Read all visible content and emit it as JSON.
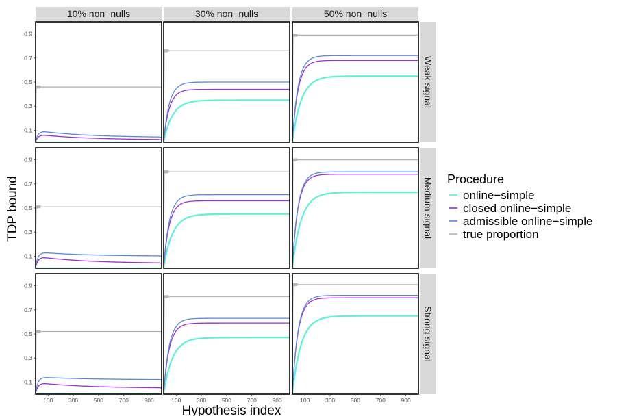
{
  "chart_data": {
    "type": "line",
    "xlabel": "Hypothesis index",
    "ylabel": "TDP bound",
    "xlim": [
      1,
      1000
    ],
    "ylim": [
      0,
      1
    ],
    "x_ticks": [
      100,
      300,
      500,
      700,
      900
    ],
    "y_ticks": [
      0.1,
      0.3,
      0.5,
      0.7,
      0.9
    ],
    "x_tick_labels": [
      "100",
      "300",
      "500",
      "700",
      "900"
    ],
    "y_tick_labels": [
      "0.1",
      "0.3",
      "0.5",
      "0.7",
      "0.9"
    ],
    "grid": false,
    "legend_title": "Procedure",
    "legend_placement": "right",
    "columns": [
      "10% non−nulls",
      "30% non−nulls",
      "50% non−nulls"
    ],
    "rows": [
      "Weak signal",
      "Medium signal",
      "Strong signal"
    ],
    "series": [
      {
        "name": "online−simple",
        "color": "#5ef2d4"
      },
      {
        "name": "closed online−simple",
        "color": "#9a2fd6"
      },
      {
        "name": "admissible online−simple",
        "color": "#5a86e0"
      },
      {
        "name": "true proportion",
        "color": "#b3b3b3"
      }
    ],
    "panels": [
      {
        "row": 0,
        "col": 0,
        "final_values": {
          "online−simple": 0.0,
          "closed online−simple": 0.02,
          "admissible online−simple": 0.04,
          "true proportion": 0.46
        },
        "peak_values": {
          "closed online−simple": 0.06,
          "admissible online−simple": 0.09
        }
      },
      {
        "row": 0,
        "col": 1,
        "final_values": {
          "online−simple": 0.35,
          "closed online−simple": 0.44,
          "admissible online−simple": 0.5,
          "true proportion": 0.76
        }
      },
      {
        "row": 0,
        "col": 2,
        "final_values": {
          "online−simple": 0.55,
          "closed online−simple": 0.68,
          "admissible online−simple": 0.72,
          "true proportion": 0.89
        }
      },
      {
        "row": 1,
        "col": 0,
        "final_values": {
          "online−simple": 0.0,
          "closed online−simple": 0.04,
          "admissible online−simple": 0.1,
          "true proportion": 0.51
        },
        "peak_values": {
          "closed online−simple": 0.09,
          "admissible online−simple": 0.13
        }
      },
      {
        "row": 1,
        "col": 1,
        "final_values": {
          "online−simple": 0.45,
          "closed online−simple": 0.56,
          "admissible online−simple": 0.61,
          "true proportion": 0.8
        }
      },
      {
        "row": 1,
        "col": 2,
        "final_values": {
          "online−simple": 0.63,
          "closed online−simple": 0.78,
          "admissible online−simple": 0.8,
          "true proportion": 0.9
        }
      },
      {
        "row": 2,
        "col": 0,
        "final_values": {
          "online−simple": 0.0,
          "closed online−simple": 0.05,
          "admissible online−simple": 0.12,
          "true proportion": 0.52
        },
        "peak_values": {
          "closed online−simple": 0.09,
          "admissible online−simple": 0.14
        }
      },
      {
        "row": 2,
        "col": 1,
        "final_values": {
          "online−simple": 0.47,
          "closed online−simple": 0.59,
          "admissible online−simple": 0.63,
          "true proportion": 0.81
        }
      },
      {
        "row": 2,
        "col": 2,
        "final_values": {
          "online−simple": 0.65,
          "closed online−simple": 0.8,
          "admissible online−simple": 0.82,
          "true proportion": 0.91
        }
      }
    ]
  }
}
